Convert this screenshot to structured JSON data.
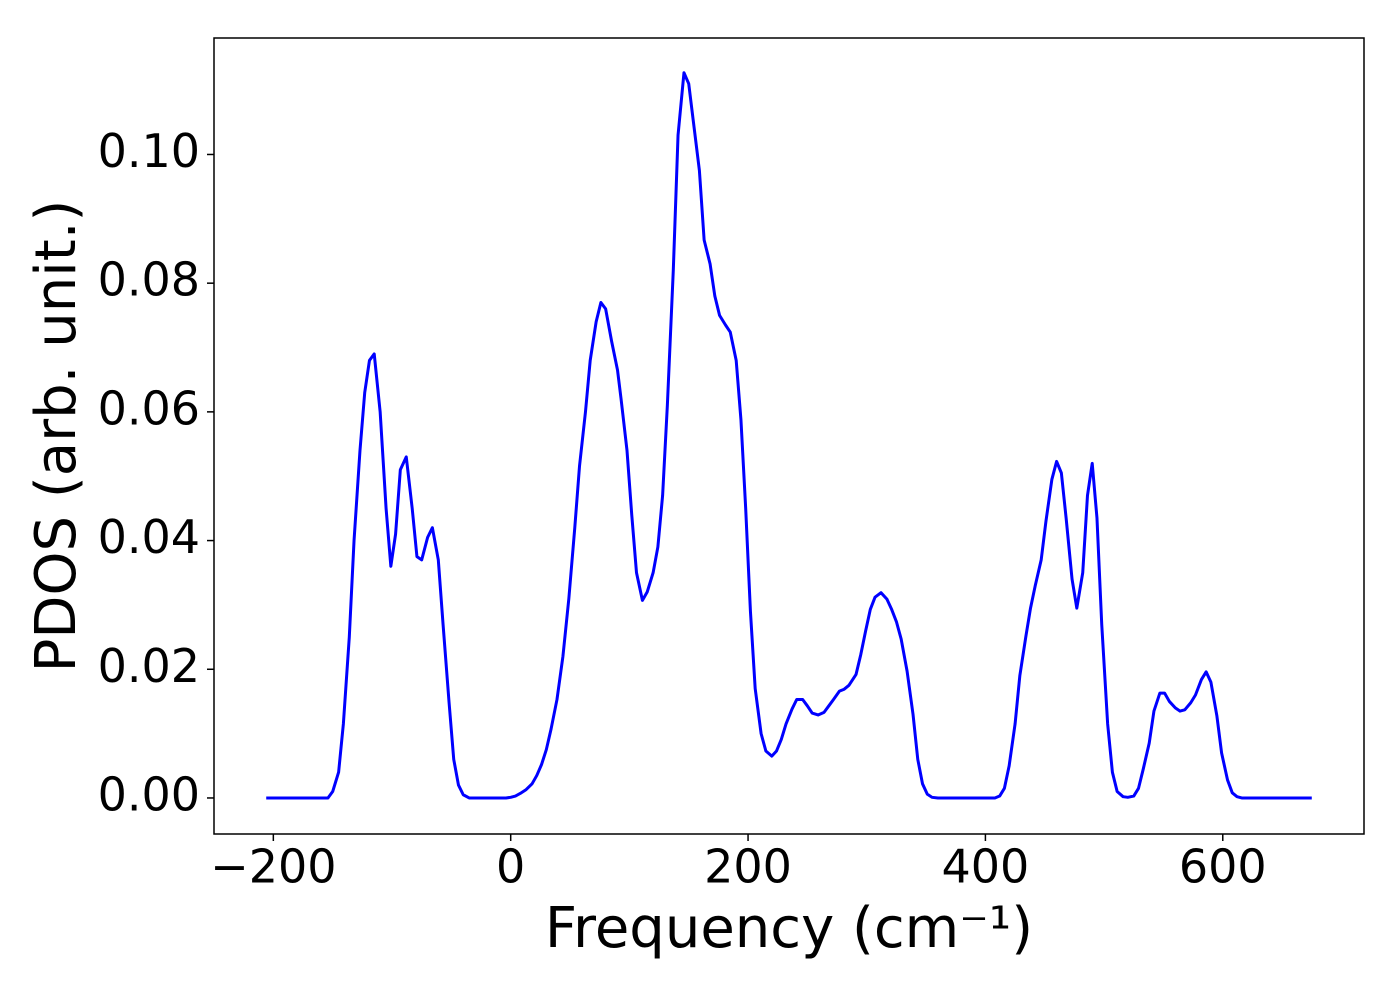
{
  "chart_data": {
    "type": "line",
    "xlabel": "Frequency (cm⁻¹)",
    "ylabel": "PDOS (arb. unit.)",
    "color": "#0000ff",
    "x": [
      -206,
      -154,
      -150,
      -145,
      -141,
      -136,
      -132,
      -127,
      -123,
      -119,
      -115,
      -110,
      -105,
      -101,
      -97,
      -93,
      -88,
      -83,
      -79,
      -75,
      -70,
      -66,
      -61,
      -57,
      -52,
      -48,
      -44,
      -40,
      -35,
      -4,
      0,
      4,
      8,
      13,
      18,
      22,
      26,
      30,
      34,
      39,
      44,
      49,
      54,
      58,
      63,
      67,
      72,
      76,
      80,
      85,
      90,
      93,
      98,
      102,
      106,
      111,
      115,
      120,
      124,
      128,
      132,
      137,
      141,
      146,
      150,
      154,
      159,
      163,
      168,
      172,
      176,
      181,
      185,
      190,
      194,
      198,
      202,
      206,
      211,
      215,
      220,
      224,
      228,
      232,
      237,
      241,
      246,
      250,
      254,
      259,
      264,
      268,
      272,
      277,
      281,
      285,
      291,
      295,
      299,
      303,
      307,
      312,
      317,
      321,
      325,
      329,
      334,
      339,
      343,
      347,
      351,
      355,
      360,
      408,
      412,
      416,
      420,
      425,
      429,
      434,
      438,
      442,
      447,
      451,
      456,
      460,
      464,
      468,
      473,
      477,
      482,
      486,
      490,
      494,
      498,
      503,
      507,
      511,
      516,
      520,
      525,
      529,
      533,
      538,
      542,
      547,
      551,
      555,
      560,
      564,
      568,
      573,
      577,
      582,
      586,
      590,
      595,
      599,
      604,
      608,
      612,
      616,
      675
    ],
    "values": [
      0,
      0,
      0.001,
      0.004,
      0.0115,
      0.025,
      0.04,
      0.054,
      0.063,
      0.068,
      0.069,
      0.06,
      0.045,
      0.036,
      0.041,
      0.051,
      0.053,
      0.045,
      0.0375,
      0.037,
      0.0405,
      0.042,
      0.037,
      0.027,
      0.015,
      0.006,
      0.002,
      0.0005,
      0,
      0,
      0.0001,
      0.0003,
      0.0007,
      0.0013,
      0.0022,
      0.0035,
      0.0052,
      0.0075,
      0.0107,
      0.0153,
      0.022,
      0.031,
      0.042,
      0.0516,
      0.06,
      0.068,
      0.074,
      0.077,
      0.076,
      0.071,
      0.0665,
      0.062,
      0.054,
      0.044,
      0.035,
      0.0307,
      0.032,
      0.035,
      0.039,
      0.047,
      0.061,
      0.082,
      0.103,
      0.1127,
      0.111,
      0.105,
      0.0975,
      0.0867,
      0.083,
      0.078,
      0.075,
      0.0735,
      0.0724,
      0.068,
      0.0588,
      0.045,
      0.029,
      0.017,
      0.01,
      0.0073,
      0.0065,
      0.0073,
      0.0091,
      0.0115,
      0.0138,
      0.0153,
      0.0153,
      0.0143,
      0.0132,
      0.0129,
      0.0133,
      0.0143,
      0.0153,
      0.0166,
      0.0169,
      0.0175,
      0.0192,
      0.0223,
      0.0259,
      0.0293,
      0.0312,
      0.0319,
      0.0309,
      0.0293,
      0.0274,
      0.0247,
      0.0197,
      0.013,
      0.006,
      0.0022,
      0.0006,
      0.0001,
      0,
      0,
      0.0003,
      0.0015,
      0.005,
      0.0115,
      0.019,
      0.025,
      0.0295,
      0.033,
      0.037,
      0.043,
      0.0495,
      0.0523,
      0.0505,
      0.0435,
      0.034,
      0.0295,
      0.035,
      0.047,
      0.052,
      0.0435,
      0.027,
      0.0115,
      0.004,
      0.001,
      0.0002,
      0.0001,
      0.0003,
      0.0015,
      0.0045,
      0.0085,
      0.0135,
      0.0163,
      0.0163,
      0.015,
      0.014,
      0.0135,
      0.0137,
      0.0148,
      0.016,
      0.0184,
      0.0196,
      0.018,
      0.0128,
      0.007,
      0.0028,
      0.0008,
      0.0002,
      0,
      0
    ],
    "xlim": [
      -250,
      719
    ],
    "ylim": [
      -0.0056,
      0.1181
    ],
    "xticks": [
      {
        "value": -200,
        "label": "−200"
      },
      0,
      200,
      400,
      600
    ],
    "yticks": [
      {
        "value": 0,
        "label": "0.00"
      },
      {
        "value": 0.02,
        "label": "0.02"
      },
      {
        "value": 0.04,
        "label": "0.04"
      },
      {
        "value": 0.06,
        "label": "0.06"
      },
      {
        "value": 0.08,
        "label": "0.08"
      },
      {
        "value": 0.1,
        "label": "0.10"
      }
    ],
    "grid": false
  }
}
